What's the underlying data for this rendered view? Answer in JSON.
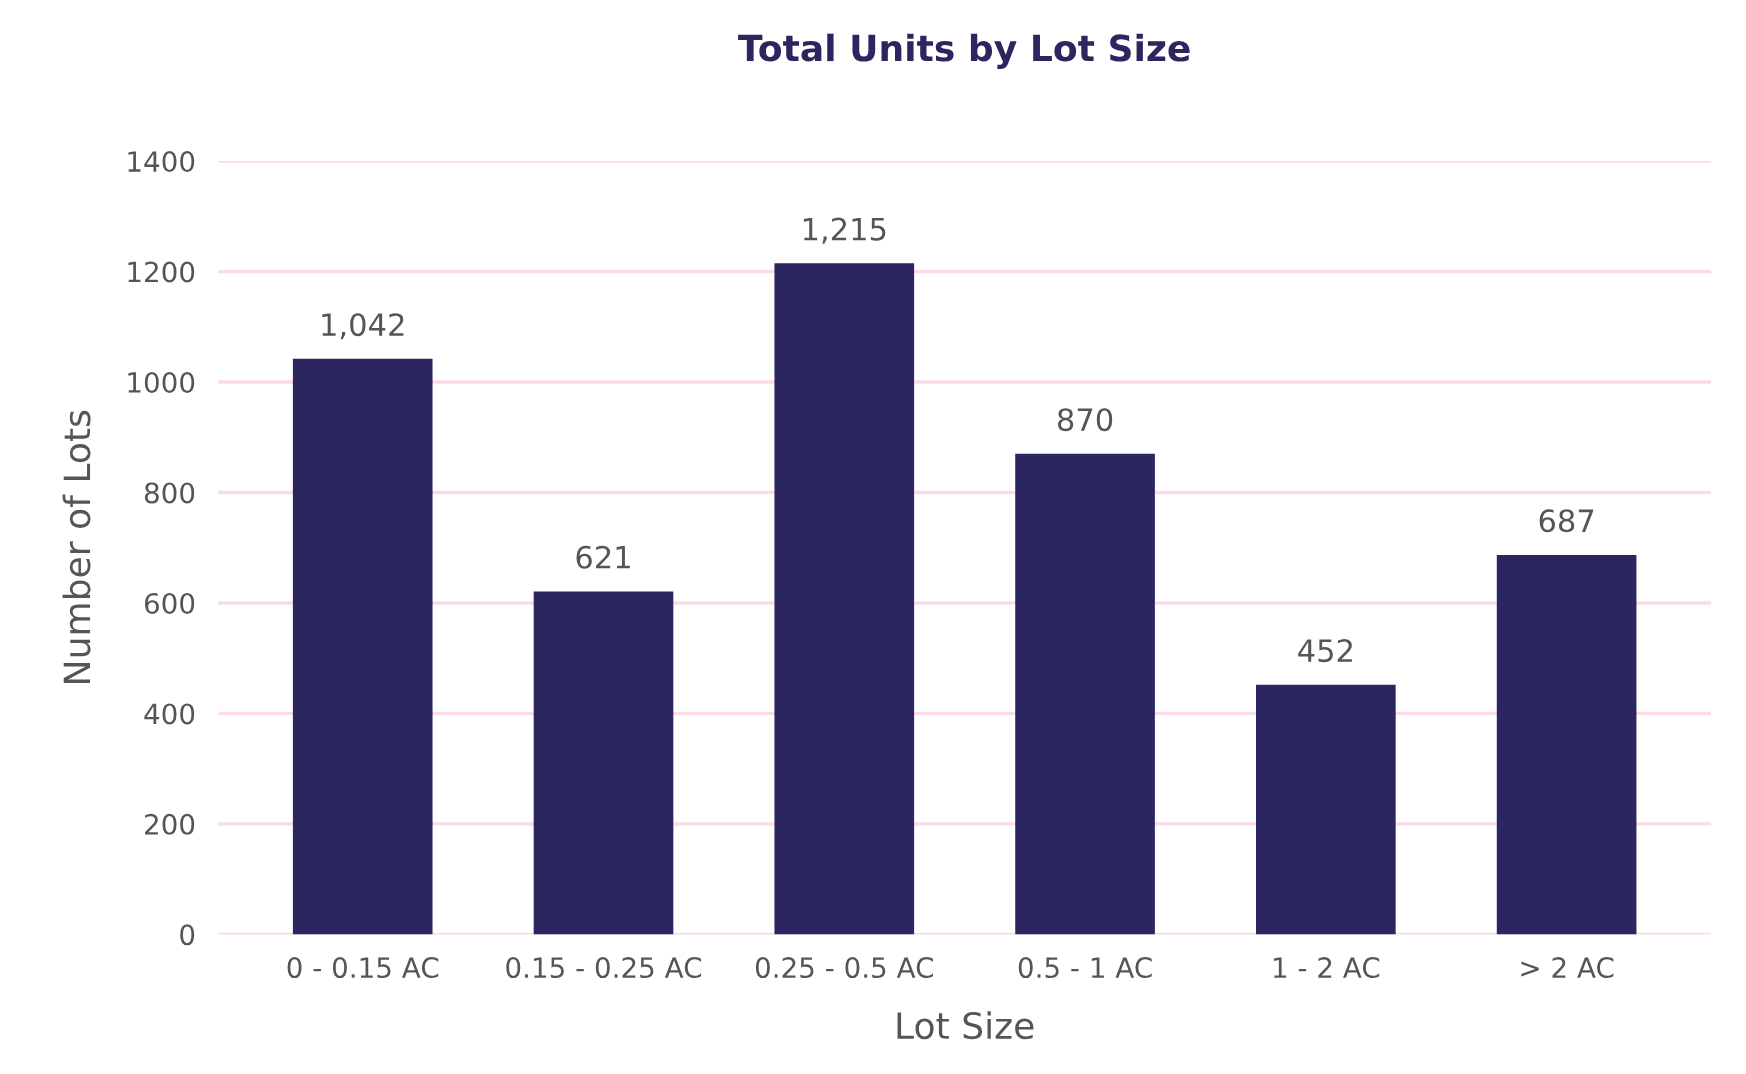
{
  "chart_data": {
    "type": "bar",
    "title": "Total Units by Lot Size",
    "xlabel": "Lot Size",
    "ylabel": "Number of Lots",
    "categories": [
      "0 - 0.15 AC",
      "0.15 - 0.25 AC",
      "0.25 - 0.5 AC",
      "0.5 - 1 AC",
      "1 - 2 AC",
      "> 2 AC"
    ],
    "values": [
      1042,
      621,
      1215,
      870,
      452,
      687
    ],
    "value_labels": [
      "1,042",
      "621",
      "1,215",
      "870",
      "452",
      "687"
    ],
    "color": "#2b2660",
    "ylim": [
      0,
      1400
    ],
    "yticks": [
      0,
      200,
      400,
      600,
      800,
      1000,
      1200,
      1400
    ],
    "grid": "y"
  }
}
